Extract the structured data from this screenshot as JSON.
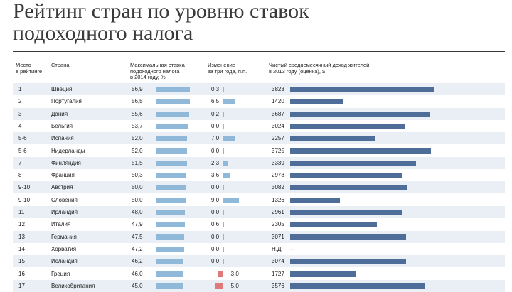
{
  "title_lines": [
    "Рейтинг стран по уровню ставок",
    "подоходного налога"
  ],
  "headers": {
    "rank": [
      "Место",
      "в рейтинге"
    ],
    "country": [
      "Страна"
    ],
    "rate": [
      "Максимальная ставка",
      "подоходного налога",
      "в 2014 году, %"
    ],
    "change": [
      "Изменение",
      "за три года, п.п."
    ],
    "income": [
      "Чистый среднемесячный доход жителей",
      "в 2013 году (оценка), $"
    ]
  },
  "chart_data": {
    "type": "table",
    "title": "Рейтинг стран по уровню ставок подоходного налога",
    "columns": [
      "Место в рейтинге",
      "Страна",
      "Максимальная ставка подоходного налога в 2014 году, %",
      "Изменение за три года, п.п.",
      "Чистый среднемесячный доход жителей в 2013 году (оценка), $"
    ],
    "rows": [
      {
        "rank": "1",
        "country": "Швеция",
        "rate": "56,9",
        "rate_value": 56.9,
        "change": "0,3",
        "change_value": 0.3,
        "income": "3823",
        "income_value": 3823
      },
      {
        "rank": "2",
        "country": "Португалия",
        "rate": "56,5",
        "rate_value": 56.5,
        "change": "6,5",
        "change_value": 6.5,
        "income": "1420",
        "income_value": 1420
      },
      {
        "rank": "3",
        "country": "Дания",
        "rate": "55,6",
        "rate_value": 55.6,
        "change": "0,2",
        "change_value": 0.2,
        "income": "3687",
        "income_value": 3687
      },
      {
        "rank": "4",
        "country": "Бельгия",
        "rate": "53,7",
        "rate_value": 53.7,
        "change": "0,0",
        "change_value": 0.0,
        "income": "3024",
        "income_value": 3024
      },
      {
        "rank": "5-6",
        "country": "Испания",
        "rate": "52,0",
        "rate_value": 52.0,
        "change": "7,0",
        "change_value": 7.0,
        "income": "2257",
        "income_value": 2257
      },
      {
        "rank": "5-6",
        "country": "Нидерланды",
        "rate": "52,0",
        "rate_value": 52.0,
        "change": "0,0",
        "change_value": 0.0,
        "income": "3725",
        "income_value": 3725
      },
      {
        "rank": "7",
        "country": "Финляндия",
        "rate": "51,5",
        "rate_value": 51.5,
        "change": "2,3",
        "change_value": 2.3,
        "income": "3339",
        "income_value": 3339
      },
      {
        "rank": "8",
        "country": "Франция",
        "rate": "50,3",
        "rate_value": 50.3,
        "change": "3,6",
        "change_value": 3.6,
        "income": "2978",
        "income_value": 2978
      },
      {
        "rank": "9-10",
        "country": "Австрия",
        "rate": "50,0",
        "rate_value": 50.0,
        "change": "0,0",
        "change_value": 0.0,
        "income": "3082",
        "income_value": 3082
      },
      {
        "rank": "9-10",
        "country": "Словения",
        "rate": "50,0",
        "rate_value": 50.0,
        "change": "9,0",
        "change_value": 9.0,
        "income": "1326",
        "income_value": 1326
      },
      {
        "rank": "11",
        "country": "Ирландия",
        "rate": "48,0",
        "rate_value": 48.0,
        "change": "0,0",
        "change_value": 0.0,
        "income": "2961",
        "income_value": 2961
      },
      {
        "rank": "12",
        "country": "Италия",
        "rate": "47,9",
        "rate_value": 47.9,
        "change": "0,6",
        "change_value": 0.6,
        "income": "2305",
        "income_value": 2305
      },
      {
        "rank": "13",
        "country": "Германия",
        "rate": "47,5",
        "rate_value": 47.5,
        "change": "0,0",
        "change_value": 0.0,
        "income": "3071",
        "income_value": 3071
      },
      {
        "rank": "14",
        "country": "Хорватия",
        "rate": "47,2",
        "rate_value": 47.2,
        "change": "0,0",
        "change_value": 0.0,
        "income": "Н.Д.",
        "income_value": null,
        "income_mark": "–"
      },
      {
        "rank": "15",
        "country": "Исландия",
        "rate": "46,2",
        "rate_value": 46.2,
        "change": "0,0",
        "change_value": 0.0,
        "income": "3074",
        "income_value": 3074
      },
      {
        "rank": "16",
        "country": "Греция",
        "rate": "46,0",
        "rate_value": 46.0,
        "change": "−3,0",
        "change_value": -3.0,
        "income": "1727",
        "income_value": 1727
      },
      {
        "rank": "17",
        "country": "Великобритания",
        "rate": "45,0",
        "rate_value": 45.0,
        "change": "−5,0",
        "change_value": -5.0,
        "income": "3576",
        "income_value": 3576
      }
    ],
    "scales": {
      "rate_max": 56.9,
      "change_max": 9.0,
      "income_max": 3823
    }
  },
  "colors": {
    "rate_bar": "#8fb8d9",
    "change_pos": "#8fb8d9",
    "change_neg": "#e07a7a",
    "income_bar": "#4f6d99",
    "row_alt": "#e9eff5"
  }
}
